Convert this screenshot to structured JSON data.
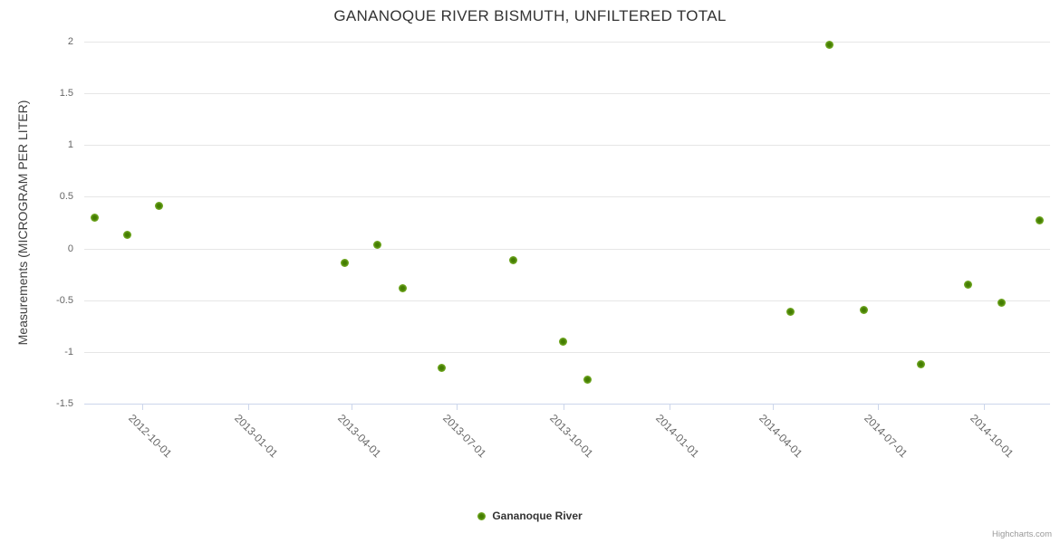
{
  "chart": {
    "credit": "Highcharts.com"
  },
  "colors": {
    "marker_core": "#447d02",
    "marker_mid": "#6da41f",
    "marker_edge": "#8cc63f",
    "grid": "#e6e6e6",
    "axis_line": "#ccd6eb",
    "tick_label": "#666666",
    "title": "#333333",
    "axis_title": "#404040",
    "legend_text": "#333333",
    "credit_text": "#999999"
  },
  "chart_data": {
    "type": "scatter",
    "title": "GANANOQUE RIVER BISMUTH, UNFILTERED TOTAL",
    "xlabel": "",
    "ylabel": "Measurements (MICROGRAM PER LITER)",
    "legend_position": "bottom-center",
    "grid": "horizontal-only",
    "xlim": [
      "2012-08-12",
      "2014-11-27"
    ],
    "ylim": [
      -1.5,
      2
    ],
    "x_ticks": [
      "2012-10-01",
      "2013-01-01",
      "2013-04-01",
      "2013-07-01",
      "2013-10-01",
      "2014-01-01",
      "2014-04-01",
      "2014-07-01",
      "2014-10-01"
    ],
    "y_ticks": [
      "2",
      "1.5",
      "1",
      "0.5",
      "0",
      "-0.5",
      "-1",
      "-1.5"
    ],
    "series": [
      {
        "name": "Gananoque River",
        "points": [
          {
            "date": "2012-08-21",
            "value": 0.3
          },
          {
            "date": "2012-09-18",
            "value": 0.13
          },
          {
            "date": "2012-10-16",
            "value": 0.41
          },
          {
            "date": "2013-03-26",
            "value": -0.14
          },
          {
            "date": "2013-04-23",
            "value": 0.04
          },
          {
            "date": "2013-05-15",
            "value": -0.38
          },
          {
            "date": "2013-06-18",
            "value": -1.15
          },
          {
            "date": "2013-08-19",
            "value": -0.11
          },
          {
            "date": "2013-10-01",
            "value": -0.9
          },
          {
            "date": "2013-10-22",
            "value": -1.27
          },
          {
            "date": "2014-04-16",
            "value": -0.61
          },
          {
            "date": "2014-05-20",
            "value": 1.97
          },
          {
            "date": "2014-06-19",
            "value": -0.59
          },
          {
            "date": "2014-08-07",
            "value": -1.12
          },
          {
            "date": "2014-09-17",
            "value": -0.35
          },
          {
            "date": "2014-10-16",
            "value": -0.52
          },
          {
            "date": "2014-11-18",
            "value": 0.27
          }
        ]
      }
    ]
  }
}
